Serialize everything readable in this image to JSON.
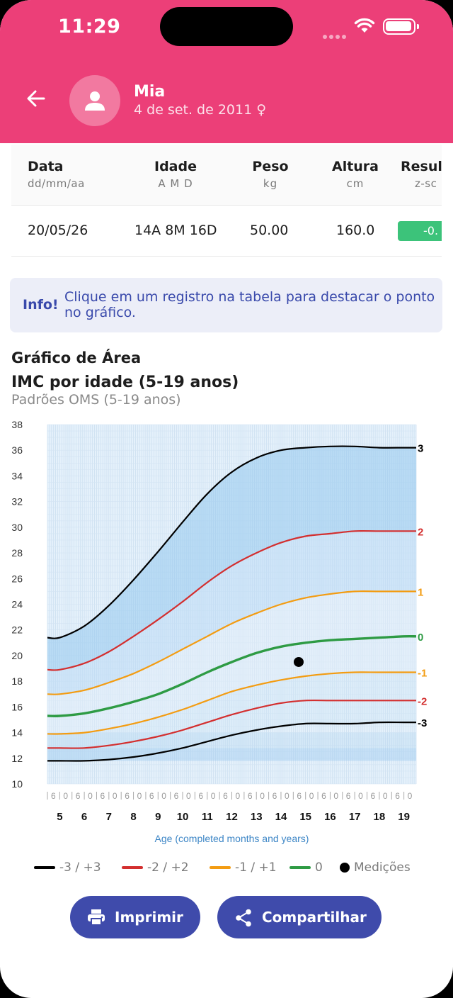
{
  "status": {
    "time": "11:29"
  },
  "patient": {
    "name": "Mia",
    "dob": "4 de set. de 2011 ♀"
  },
  "table": {
    "headers": [
      {
        "title": "Data",
        "sub": "dd/mm/aa"
      },
      {
        "title": "Idade",
        "sub": "A M D"
      },
      {
        "title": "Peso",
        "sub": "kg"
      },
      {
        "title": "Altura",
        "sub": "cm"
      },
      {
        "title": "Resul",
        "sub": "z-sc"
      }
    ],
    "rows": [
      {
        "date": "20/05/26",
        "age": "14A 8M 16D",
        "weight": "50.00",
        "height": "160.0",
        "zscore": "-0."
      }
    ]
  },
  "info": {
    "label": "Info!",
    "text": "Clique em um registro na tabela para destacar o ponto no gráfico."
  },
  "chart_title": "Gráfico de Área",
  "chart_subtitle": "IMC por idade (5-19 anos)",
  "chart_source": "Padrões OMS (5-19 anos)",
  "legend": {
    "l3": "-3 / +3",
    "l2": "-2 / +2",
    "l1": "-1 / +1",
    "l0": "0",
    "pt": "Medições"
  },
  "buttons": {
    "print": "Imprimir",
    "share": "Compartilhar"
  },
  "colors": {
    "header": "#ec3f78",
    "sd3": "#000000",
    "sd2": "#d32f2f",
    "sd1": "#f39c12",
    "median": "#2e9b44",
    "button": "#3f4bab"
  },
  "chart_data": {
    "type": "area",
    "title": "IMC por idade (5-19 anos)",
    "subtitle": "Padrões OMS (5-19 anos)",
    "xlabel": "Age (completed months and years)",
    "ylabel": "",
    "xlim": [
      4.5,
      19.5
    ],
    "ylim": [
      10,
      38
    ],
    "yticks": [
      10,
      12,
      14,
      16,
      18,
      20,
      22,
      24,
      26,
      28,
      30,
      32,
      34,
      36,
      38
    ],
    "xticks": [
      5,
      6,
      7,
      8,
      9,
      10,
      11,
      12,
      13,
      14,
      15,
      16,
      17,
      18,
      19
    ],
    "minor_tick_labels": [
      "0",
      "6"
    ],
    "x": [
      4.5,
      5,
      6,
      7,
      8,
      9,
      10,
      11,
      12,
      13,
      14,
      15,
      16,
      17,
      18,
      19,
      19.5
    ],
    "series": [
      {
        "name": "-3",
        "end_label": "-3",
        "color": "#000000",
        "values": [
          11.8,
          11.8,
          11.8,
          11.9,
          12.1,
          12.4,
          12.8,
          13.3,
          13.8,
          14.2,
          14.5,
          14.7,
          14.7,
          14.7,
          14.8,
          14.8,
          14.8
        ]
      },
      {
        "name": "-2",
        "end_label": "-2",
        "color": "#d32f2f",
        "values": [
          12.8,
          12.8,
          12.8,
          13.0,
          13.3,
          13.7,
          14.2,
          14.8,
          15.4,
          15.9,
          16.3,
          16.5,
          16.5,
          16.5,
          16.5,
          16.5,
          16.5
        ]
      },
      {
        "name": "-1",
        "end_label": "-1",
        "color": "#f39c12",
        "values": [
          13.9,
          13.9,
          14.0,
          14.3,
          14.7,
          15.2,
          15.8,
          16.5,
          17.2,
          17.7,
          18.1,
          18.4,
          18.6,
          18.7,
          18.7,
          18.7,
          18.7
        ]
      },
      {
        "name": "0",
        "end_label": "0",
        "color": "#2e9b44",
        "values": [
          15.3,
          15.3,
          15.5,
          15.9,
          16.4,
          17.0,
          17.8,
          18.7,
          19.5,
          20.2,
          20.7,
          21.0,
          21.2,
          21.3,
          21.4,
          21.5,
          21.5
        ]
      },
      {
        "name": "+1",
        "end_label": "1",
        "color": "#f39c12",
        "values": [
          17.0,
          17.0,
          17.3,
          17.9,
          18.6,
          19.5,
          20.5,
          21.5,
          22.5,
          23.3,
          24.0,
          24.5,
          24.8,
          25.0,
          25.0,
          25.0,
          25.0
        ]
      },
      {
        "name": "+2",
        "end_label": "2",
        "color": "#d32f2f",
        "values": [
          18.9,
          18.9,
          19.4,
          20.3,
          21.5,
          22.8,
          24.2,
          25.7,
          27.0,
          28.0,
          28.8,
          29.3,
          29.5,
          29.7,
          29.7,
          29.7,
          29.7
        ]
      },
      {
        "name": "+3",
        "end_label": "3",
        "color": "#000000",
        "values": [
          21.4,
          21.4,
          22.3,
          23.9,
          25.9,
          28.1,
          30.4,
          32.6,
          34.3,
          35.4,
          36.0,
          36.2,
          36.3,
          36.3,
          36.2,
          36.2,
          36.2
        ]
      }
    ],
    "points": [
      {
        "label": "Medições",
        "x": 14.72,
        "y": 19.5
      }
    ],
    "grid": true,
    "legend_position": "bottom"
  }
}
